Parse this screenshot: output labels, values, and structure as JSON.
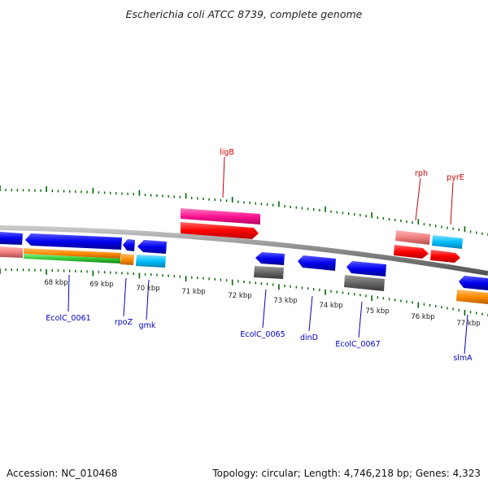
{
  "title": "Escherichia coli ATCC 8739, complete genome",
  "footer": {
    "accession": "Accession: NC_010468",
    "topology": "Topology: circular; Length: 4,746,218 bp; Genes: 4,323"
  },
  "kbp_ticks": [
    "68 kbp",
    "69 kbp",
    "70 kbp",
    "71 kbp",
    "72 kbp",
    "73 kbp",
    "74 kbp",
    "75 kbp",
    "76 kbp",
    "77 kbp"
  ],
  "gene_labels": {
    "ligB": "ligB",
    "rph": "rph",
    "pyrE": "pyrE",
    "EcolC_0061": "EcolC_0061",
    "rpoZ": "rpoZ",
    "gmk": "gmk",
    "EcolC_0065": "EcolC_0065",
    "dinD": "dinD",
    "EcolC_0067": "EcolC_0067",
    "slmA": "slmA"
  },
  "colors": {
    "forward_cds": "#ff0000",
    "forward_rna": "#ff1493",
    "reverse_cds": "#0000ee",
    "pseudo": "#666666",
    "orange": "#ff8c00",
    "green": "#33cc33",
    "salmon": "#f08080",
    "cyan": "#00bfff",
    "tick_green": "#006400",
    "backbone": "#888888"
  }
}
